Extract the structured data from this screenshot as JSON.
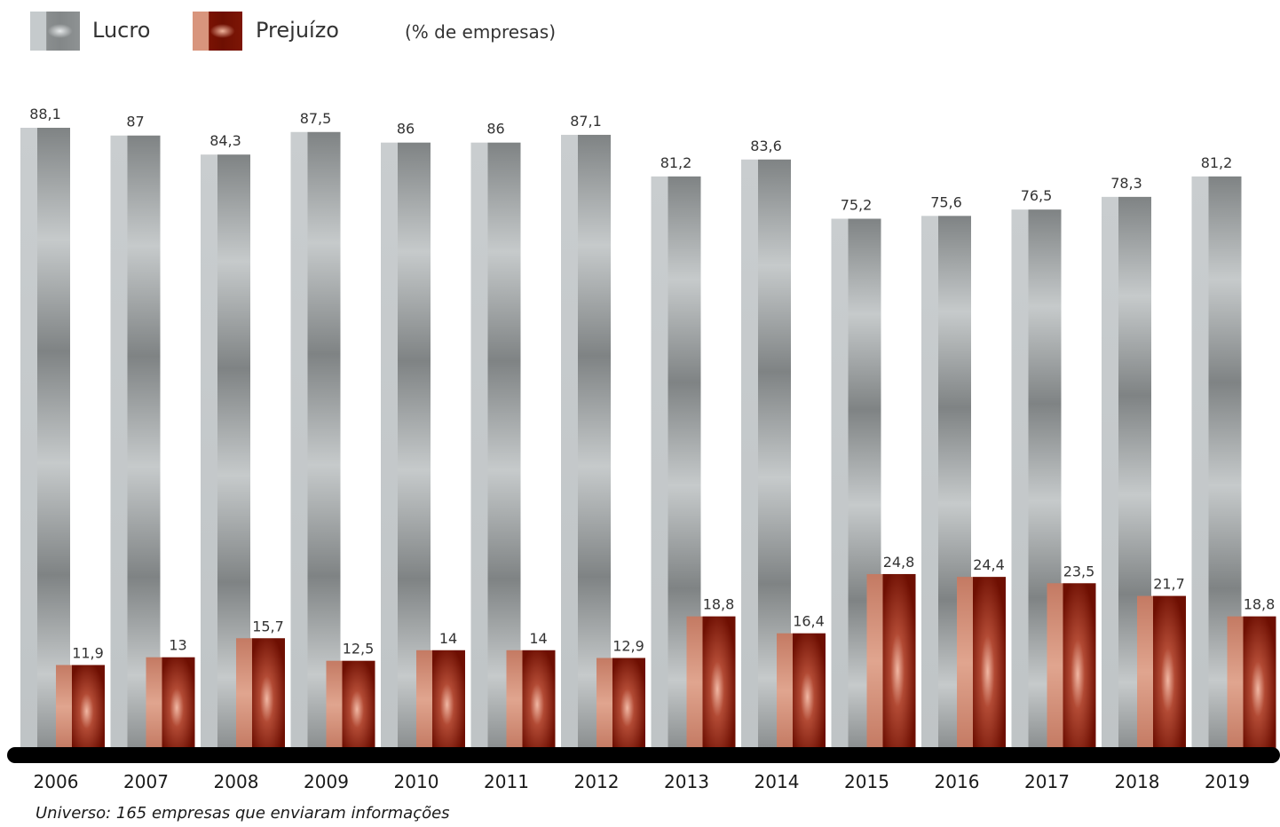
{
  "legend": {
    "lucro_label": "Lucro",
    "prejuizo_label": "Prejuízo",
    "unit_note": "(% de empresas)"
  },
  "chart_data": {
    "type": "bar",
    "categories": [
      "2006",
      "2007",
      "2008",
      "2009",
      "2010",
      "2011",
      "2012",
      "2013",
      "2014",
      "2015",
      "2016",
      "2017",
      "2018",
      "2019"
    ],
    "series": [
      {
        "name": "Lucro",
        "values": [
          88.1,
          87,
          84.3,
          87.5,
          86,
          86,
          87.1,
          81.2,
          83.6,
          75.2,
          75.6,
          76.5,
          78.3,
          81.2
        ],
        "labels": [
          "88,1",
          "87",
          "84,3",
          "87,5",
          "86",
          "86",
          "87,1",
          "81,2",
          "83,6",
          "75,2",
          "75,6",
          "76,5",
          "78,3",
          "81,2"
        ]
      },
      {
        "name": "Prejuízo",
        "values": [
          11.9,
          13,
          15.7,
          12.5,
          14,
          14,
          12.9,
          18.8,
          16.4,
          24.8,
          24.4,
          23.5,
          21.7,
          18.8
        ],
        "labels": [
          "11,9",
          "13",
          "15,7",
          "12,5",
          "14",
          "14",
          "12,9",
          "18,8",
          "16,4",
          "24,8",
          "24,4",
          "23,5",
          "21,7",
          "18,8"
        ]
      }
    ],
    "ylim": [
      0,
      100
    ],
    "colors": {
      "lucro": "#8a8e8f",
      "prejuizo": "#7a1203"
    }
  },
  "footnote": "Universo: 165 empresas que enviaram informações"
}
